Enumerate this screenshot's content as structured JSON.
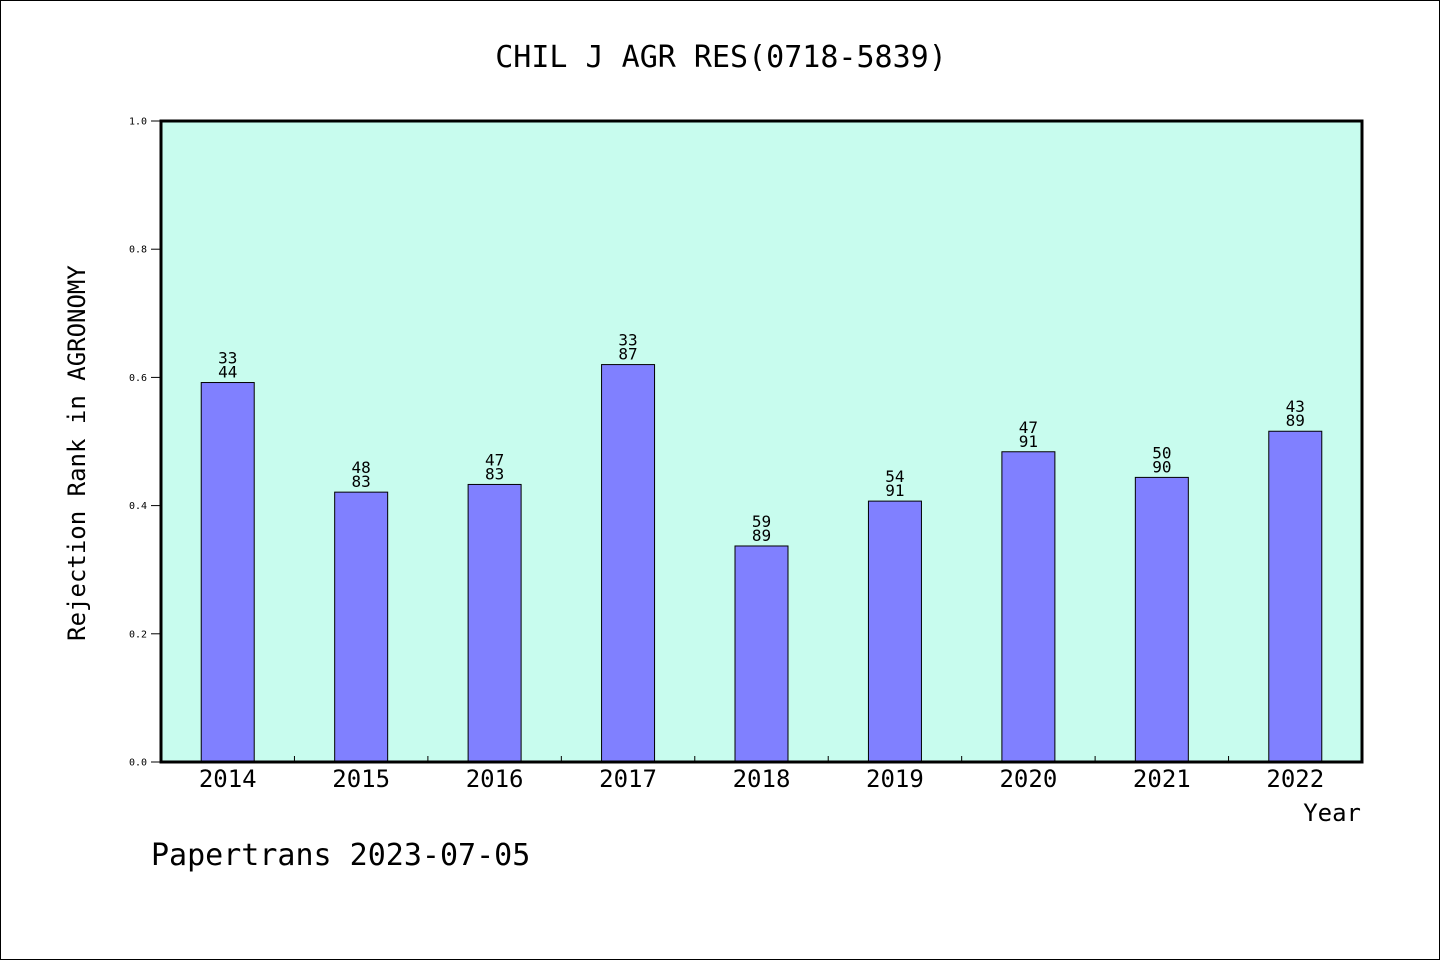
{
  "chart_data": {
    "type": "bar",
    "title": "CHIL J AGR RES(0718-5839)",
    "ylabel": "Rejection Rank in AGRONOMY",
    "xlabel": "Year",
    "ylim": [
      0,
      1.0
    ],
    "yticks": [
      "0.0",
      "0.2",
      "0.4",
      "0.6",
      "0.8",
      "1.0"
    ],
    "categories": [
      "2014",
      "2015",
      "2016",
      "2017",
      "2018",
      "2019",
      "2020",
      "2021",
      "2022"
    ],
    "values": [
      0.592,
      0.421,
      0.433,
      0.62,
      0.337,
      0.407,
      0.484,
      0.444,
      0.516
    ],
    "labels_top": [
      "33",
      "48",
      "47",
      "33",
      "59",
      "54",
      "47",
      "50",
      "43"
    ],
    "labels_bottom": [
      "44",
      "83",
      "83",
      "87",
      "89",
      "91",
      "91",
      "90",
      "89"
    ],
    "grid": false,
    "colors": {
      "plot_background": "#c8fcee",
      "bar_fill": "#8080ff",
      "bar_stroke": "#000000"
    }
  },
  "footer": {
    "text": "Papertrans 2023-07-05"
  }
}
